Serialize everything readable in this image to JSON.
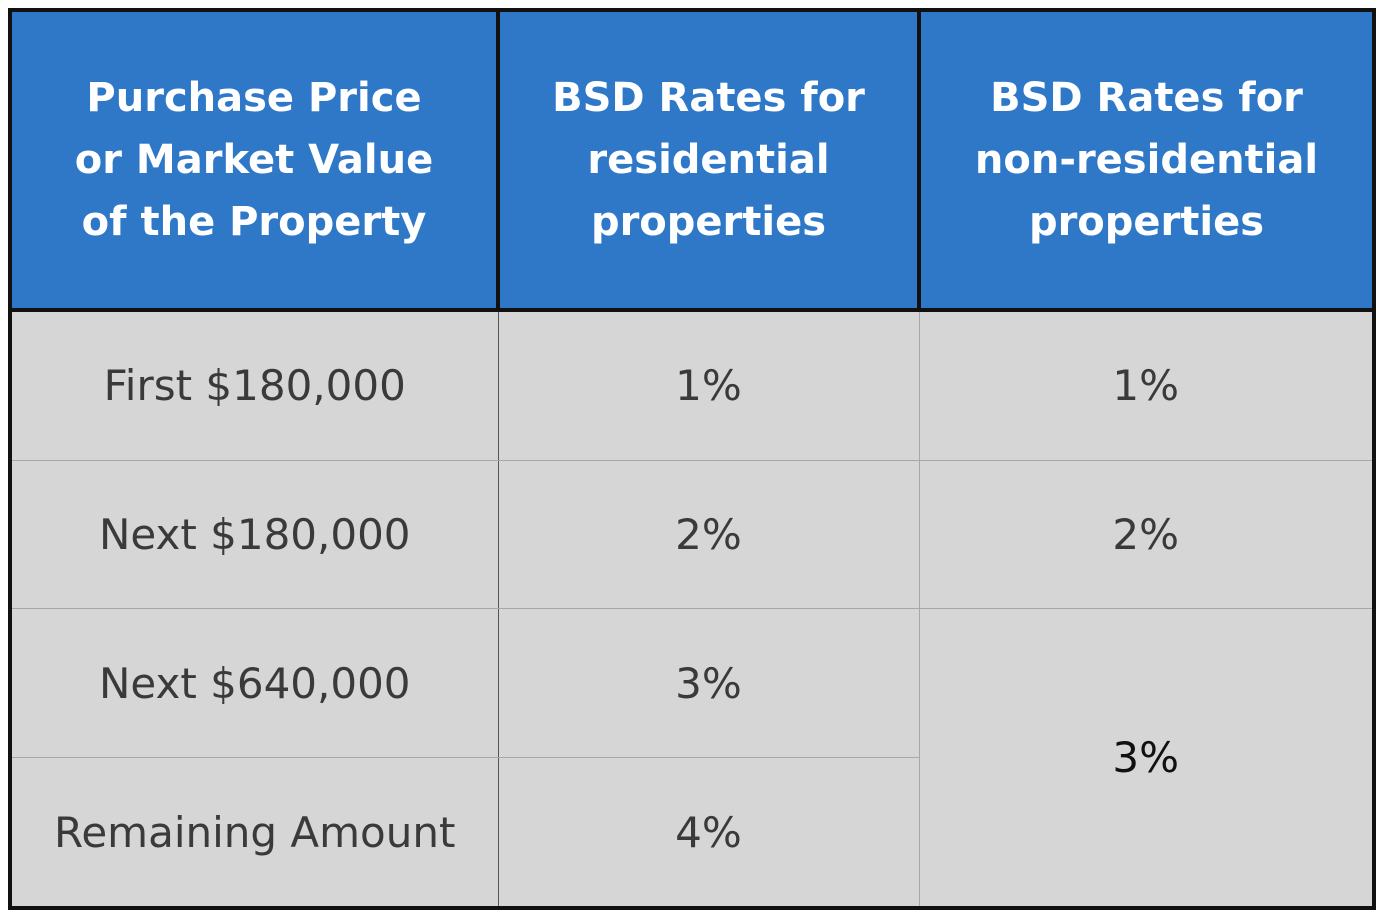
{
  "table": {
    "headers": [
      {
        "lines": [
          "Purchase Price",
          "or Market Value",
          "of the Property"
        ]
      },
      {
        "lines": [
          "BSD Rates for",
          "residential",
          "properties"
        ]
      },
      {
        "lines": [
          "BSD Rates for",
          "non-residential",
          "properties"
        ]
      }
    ],
    "rows": [
      {
        "bracket": "First $180,000",
        "residential": "1%",
        "non_residential": "1%"
      },
      {
        "bracket": "Next $180,000",
        "residential": "2%",
        "non_residential": "2%"
      },
      {
        "bracket": "Next $640,000",
        "residential": "3%",
        "non_residential": "3%"
      },
      {
        "bracket": "Remaining Amount",
        "residential": "4%"
      }
    ],
    "colors": {
      "header_bg": "#2f78c8",
      "header_text": "#ffffff",
      "body_bg": "#d6d6d6",
      "border": "#111111"
    }
  }
}
